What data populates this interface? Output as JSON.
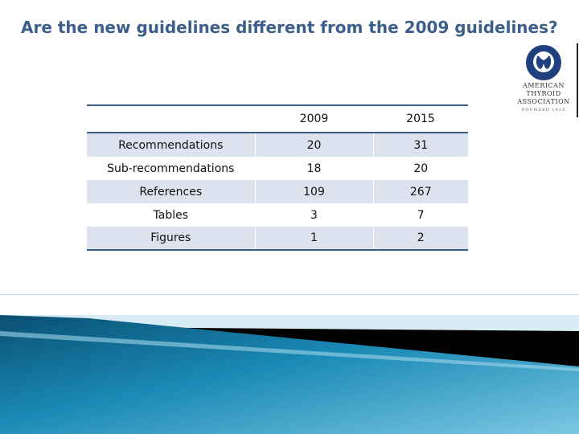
{
  "slide": {
    "title": "Are the new guidelines different from the 2009 guidelines?"
  },
  "logo": {
    "name": "American Thyroid Association",
    "lines": [
      "AMERICAN",
      "THYROID",
      "ASSOCIATION"
    ],
    "founded": "FOUNDED 1923"
  },
  "table": {
    "headers": [
      "",
      "2009",
      "2015"
    ],
    "rows": [
      {
        "label": "Recommendations",
        "v2009": "20",
        "v2015": "31"
      },
      {
        "label": "Sub-recommendations",
        "v2009": "18",
        "v2015": "20"
      },
      {
        "label": "References",
        "v2009": "109",
        "v2015": "267"
      },
      {
        "label": "Tables",
        "v2009": "3",
        "v2015": "7"
      },
      {
        "label": "Figures",
        "v2009": "1",
        "v2015": "2"
      }
    ]
  },
  "colors": {
    "title": "#3b5f8a",
    "table_rule": "#3c5e86",
    "row_shade": "#dde2ef",
    "band_dark": "#0e5f82",
    "band_light": "#8fd0e6",
    "logo_seal": "#1f3f7f"
  }
}
